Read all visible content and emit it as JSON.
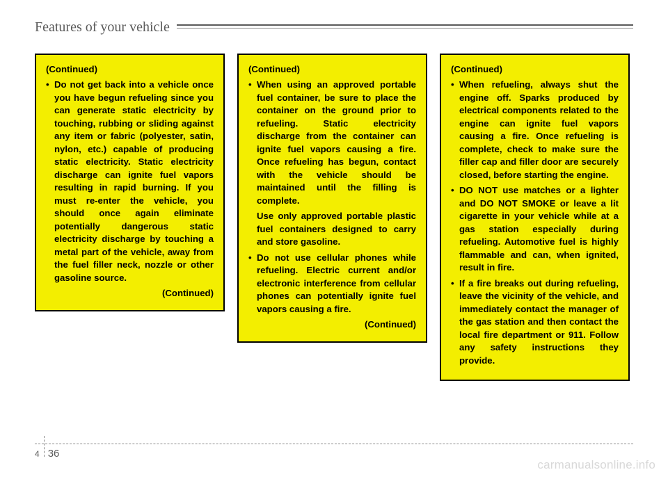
{
  "header": {
    "title": "Features of your vehicle"
  },
  "footer": {
    "chapter": "4",
    "page": "36"
  },
  "watermark": "carmanualsonline.info",
  "colors": {
    "warning_bg": "#f3ee00",
    "warning_border": "#000000",
    "text": "#000000",
    "header_text": "#5a5a5a",
    "rule": "#5a5a5a",
    "watermark": "#d8d8d8"
  },
  "boxes": [
    {
      "continued_top": "(Continued)",
      "items": [
        "Do not get back into a vehicle once you have begun refueling since you can generate static electricity by touching, rubbing or sliding against any item or fabric (polyester, satin, nylon, etc.) capable of producing static electricity. Static electricity discharge can ignite fuel vapors resulting in rapid burning. If you must re-enter the vehicle, you should once again eliminate potentially dangerous static electricity discharge by touching a metal part of the vehicle, away from the fuel filler neck, nozzle or other gasoline source."
      ],
      "subs": [],
      "continued_bottom": "(Continued)"
    },
    {
      "continued_top": "(Continued)",
      "items": [
        "When using an approved portable fuel container, be sure to place the container on the ground prior to refueling. Static electricity discharge from the container can ignite fuel vapors causing a fire. Once refueling has begun, contact with the vehicle should be maintained until the filling is complete."
      ],
      "subs": [
        "Use only approved portable plastic fuel containers designed to carry and store gasoline."
      ],
      "items2": [
        "Do not use cellular phones while refueling. Electric current and/or electronic interference from cellular phones can potentially ignite fuel vapors causing a fire."
      ],
      "continued_bottom": "(Continued)"
    },
    {
      "continued_top": "(Continued)",
      "items": [
        "When refueling, always shut the engine off. Sparks produced by electrical components related to the engine can ignite fuel vapors causing a fire. Once refueling is complete, check to make sure the filler cap and filler door are securely closed, before starting the engine.",
        "DO NOT use matches or a lighter and DO NOT SMOKE or leave a lit cigarette in your vehicle while at a gas station especially during refueling. Automotive fuel is highly flammable and can, when ignited, result in fire.",
        "If a fire breaks out during refueling, leave the vicinity of the vehicle, and immediately contact the manager of the gas station and then contact the local fire department or 911. Follow any safety instructions they provide."
      ],
      "subs": [],
      "continued_bottom": ""
    }
  ]
}
